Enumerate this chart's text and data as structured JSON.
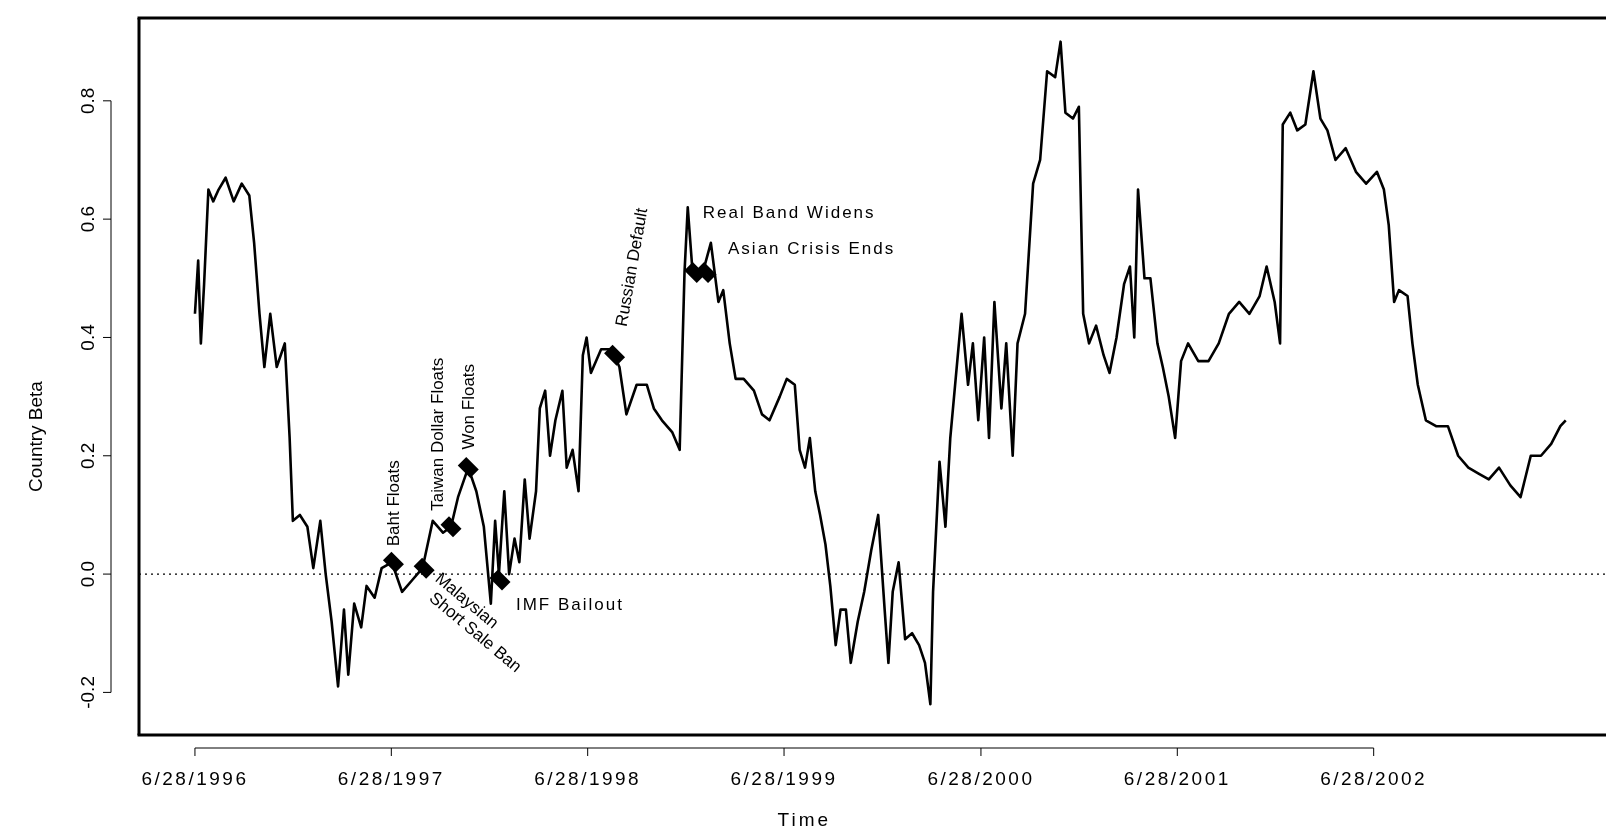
{
  "chart_data": {
    "type": "line",
    "xlabel": "Time",
    "ylabel": "Country Beta",
    "xlim": [
      "1996-03-16",
      "2003-09-14"
    ],
    "ylim": [
      -0.272,
      0.94
    ],
    "xticks": [
      {
        "value": "1996-06-28",
        "label": "6/28/1996"
      },
      {
        "value": "1997-06-28",
        "label": "6/28/1997"
      },
      {
        "value": "1998-06-28",
        "label": "6/28/1998"
      },
      {
        "value": "1999-06-28",
        "label": "6/28/1999"
      },
      {
        "value": "2000-06-28",
        "label": "6/28/2000"
      },
      {
        "value": "2001-06-28",
        "label": "6/28/2001"
      },
      {
        "value": "2002-06-28",
        "label": "6/28/2002"
      }
    ],
    "yticks": [
      -0.2,
      {
        "value": 0,
        "label": "0.0"
      },
      0.2,
      0.4,
      0.6,
      0.8
    ],
    "ref_lines": [
      {
        "axis": "y",
        "value": 0,
        "line_style": "dotted",
        "color": "#000000"
      }
    ],
    "series": [
      {
        "color": "#000000",
        "line_style": "solid",
        "x": [
          "1996-06-28",
          "1996-07-04",
          "1996-07-09",
          "1996-07-15",
          "1996-07-23",
          "1996-08-01",
          "1996-08-11",
          "1996-08-24",
          "1996-09-08",
          "1996-09-23",
          "1996-10-07",
          "1996-10-16",
          "1996-10-26",
          "1996-11-04",
          "1996-11-15",
          "1996-11-27",
          "1996-12-12",
          "1996-12-21",
          "1996-12-27",
          "1997-01-09",
          "1997-01-23",
          "1997-02-03",
          "1997-02-16",
          "1997-02-26",
          "1997-03-09",
          "1997-03-21",
          "1997-04-01",
          "1997-04-09",
          "1997-04-20",
          "1997-05-03",
          "1997-05-13",
          "1997-05-28",
          "1997-06-10",
          "1997-06-29",
          "1997-07-18",
          "1997-08-06",
          "1997-08-25",
          "1997-09-13",
          "1997-10-02",
          "1997-10-17",
          "1997-10-30",
          "1997-11-18",
          "1997-12-03",
          "1997-12-17",
          "1997-12-30",
          "1998-01-07",
          "1998-01-14",
          "1998-01-24",
          "1998-02-02",
          "1998-02-12",
          "1998-02-21",
          "1998-03-03",
          "1998-03-12",
          "1998-03-24",
          "1998-03-31",
          "1998-04-10",
          "1998-04-19",
          "1998-04-29",
          "1998-05-12",
          "1998-05-20",
          "1998-05-31",
          "1998-06-11",
          "1998-06-19",
          "1998-06-26",
          "1998-07-04",
          "1998-07-23",
          "1998-08-11",
          "1998-08-26",
          "1998-09-08",
          "1998-09-27",
          "1998-10-16",
          "1998-10-29",
          "1998-11-13",
          "1998-12-02",
          "1998-12-16",
          "1998-12-25",
          "1998-12-31",
          "1999-01-09",
          "1999-01-28",
          "1999-02-12",
          "1999-02-26",
          "1999-03-07",
          "1999-03-19",
          "1999-03-30",
          "1999-04-14",
          "1999-05-03",
          "1999-05-18",
          "1999-06-01",
          "1999-06-20",
          "1999-07-03",
          "1999-07-18",
          "1999-07-27",
          "1999-08-06",
          "1999-08-15",
          "1999-08-25",
          "1999-09-03",
          "1999-09-13",
          "1999-09-22",
          "1999-10-02",
          "1999-10-11",
          "1999-10-21",
          "1999-10-30",
          "1999-11-12",
          "1999-11-24",
          "1999-12-07",
          "1999-12-20",
          "2000-01-01",
          "2000-01-08",
          "2000-01-16",
          "2000-01-27",
          "2000-02-08",
          "2000-02-21",
          "2000-03-05",
          "2000-03-16",
          "2000-03-26",
          "2000-03-31",
          "2000-04-12",
          "2000-04-23",
          "2000-05-02",
          "2000-05-12",
          "2000-05-23",
          "2000-06-04",
          "2000-06-13",
          "2000-06-23",
          "2000-07-04",
          "2000-07-13",
          "2000-07-23",
          "2000-08-05",
          "2000-08-14",
          "2000-08-26",
          "2000-09-04",
          "2000-09-18",
          "2000-10-03",
          "2000-10-16",
          "2000-10-29",
          "2000-11-13",
          "2000-11-23",
          "2000-12-02",
          "2000-12-16",
          "2000-12-27",
          "2001-01-04",
          "2001-01-15",
          "2001-01-28",
          "2001-02-11",
          "2001-02-22",
          "2001-03-07",
          "2001-03-21",
          "2001-04-01",
          "2001-04-09",
          "2001-04-16",
          "2001-04-28",
          "2001-05-09",
          "2001-05-22",
          "2001-06-01",
          "2001-06-12",
          "2001-06-24",
          "2001-07-05",
          "2001-07-18",
          "2001-08-06",
          "2001-08-25",
          "2001-09-13",
          "2001-10-02",
          "2001-10-21",
          "2001-11-09",
          "2001-11-28",
          "2001-12-11",
          "2001-12-26",
          "2002-01-05",
          "2002-01-10",
          "2002-01-24",
          "2002-02-06",
          "2002-02-21",
          "2002-03-08",
          "2002-03-21",
          "2002-04-03",
          "2002-04-18",
          "2002-05-07",
          "2002-05-26",
          "2002-06-14",
          "2002-07-04",
          "2002-07-17",
          "2002-07-26",
          "2002-08-05",
          "2002-08-14",
          "2002-08-30",
          "2002-09-08",
          "2002-09-18",
          "2002-10-03",
          "2002-10-22",
          "2002-11-13",
          "2002-12-02",
          "2002-12-21",
          "2003-01-09",
          "2003-01-28",
          "2003-02-16",
          "2003-03-09",
          "2003-03-28",
          "2003-04-16",
          "2003-05-05",
          "2003-05-24",
          "2003-06-10",
          "2003-06-20"
        ],
        "values": [
          0.44,
          0.53,
          0.39,
          0.49,
          0.65,
          0.63,
          0.65,
          0.67,
          0.63,
          0.66,
          0.64,
          0.56,
          0.44,
          0.35,
          0.44,
          0.35,
          0.39,
          0.23,
          0.09,
          0.1,
          0.08,
          0.01,
          0.09,
          0.0,
          -0.08,
          -0.19,
          -0.06,
          -0.17,
          -0.05,
          -0.09,
          -0.02,
          -0.04,
          0.01,
          0.02,
          -0.03,
          -0.01,
          0.01,
          0.09,
          0.07,
          0.08,
          0.13,
          0.18,
          0.14,
          0.08,
          -0.05,
          0.09,
          0.0,
          0.14,
          0.0,
          0.06,
          0.02,
          0.16,
          0.06,
          0.14,
          0.28,
          0.31,
          0.2,
          0.26,
          0.31,
          0.18,
          0.21,
          0.14,
          0.37,
          0.4,
          0.34,
          0.38,
          0.38,
          0.35,
          0.27,
          0.32,
          0.32,
          0.28,
          0.26,
          0.24,
          0.21,
          0.51,
          0.62,
          0.51,
          0.51,
          0.56,
          0.46,
          0.48,
          0.39,
          0.33,
          0.33,
          0.31,
          0.27,
          0.26,
          0.3,
          0.33,
          0.32,
          0.21,
          0.18,
          0.23,
          0.14,
          0.1,
          0.05,
          -0.02,
          -0.12,
          -0.06,
          -0.06,
          -0.15,
          -0.08,
          -0.03,
          0.04,
          0.1,
          -0.06,
          -0.15,
          -0.03,
          0.02,
          -0.11,
          -0.1,
          -0.12,
          -0.15,
          -0.22,
          -0.03,
          0.19,
          0.08,
          0.23,
          0.33,
          0.44,
          0.32,
          0.39,
          0.26,
          0.4,
          0.23,
          0.46,
          0.28,
          0.39,
          0.2,
          0.39,
          0.44,
          0.66,
          0.7,
          0.85,
          0.84,
          0.9,
          0.78,
          0.77,
          0.79,
          0.44,
          0.39,
          0.42,
          0.37,
          0.34,
          0.4,
          0.49,
          0.52,
          0.4,
          0.65,
          0.5,
          0.5,
          0.39,
          0.35,
          0.3,
          0.23,
          0.36,
          0.39,
          0.36,
          0.36,
          0.39,
          0.44,
          0.46,
          0.44,
          0.47,
          0.52,
          0.46,
          0.39,
          0.76,
          0.78,
          0.75,
          0.76,
          0.85,
          0.77,
          0.75,
          0.7,
          0.72,
          0.68,
          0.66,
          0.68,
          0.65,
          0.59,
          0.46,
          0.48,
          0.47,
          0.39,
          0.32,
          0.26,
          0.25,
          0.25,
          0.2,
          0.18,
          0.17,
          0.16,
          0.18,
          0.15,
          0.13,
          0.2,
          0.2,
          0.22,
          0.25,
          0.26
        ]
      },
      {
        "type": "scatter",
        "color": "#000000",
        "marker": "diamond",
        "x": [
          "1997-07-02",
          "1997-08-28",
          "1997-10-17",
          "1997-11-18",
          "1998-01-16",
          "1998-08-17",
          "1999-01-13",
          "1999-02-03"
        ],
        "values": [
          0.02,
          0.01,
          0.08,
          0.18,
          -0.01,
          0.37,
          0.51,
          0.51
        ]
      }
    ],
    "annotations": [
      {
        "text": "Baht Floats",
        "x": "1997-07-02",
        "y": 0.02
      },
      {
        "text": "Malaysian Short Sale Ban",
        "x": "1997-08-28",
        "y": 0.01
      },
      {
        "text": "Taiwan Dollar Floats",
        "x": "1997-10-17",
        "y": 0.08
      },
      {
        "text": "Won Floats",
        "x": "1997-11-18",
        "y": 0.18
      },
      {
        "text": "IMF Bailout",
        "x": "1998-01-16",
        "y": -0.01
      },
      {
        "text": "Russian Default",
        "x": "1998-08-17",
        "y": 0.37
      },
      {
        "text": "Real Band Widens",
        "x": "1999-01-13",
        "y": 0.51
      },
      {
        "text": "Asian Crisis Ends",
        "x": "1999-02-03",
        "y": 0.51
      }
    ]
  }
}
